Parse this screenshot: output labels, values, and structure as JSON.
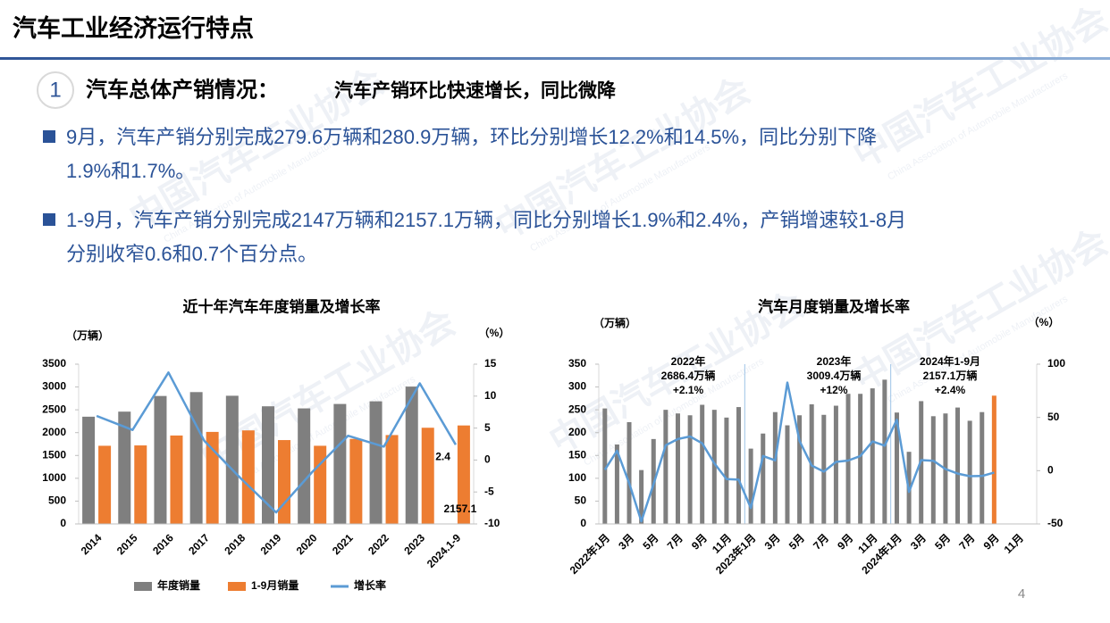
{
  "header": {
    "title": "汽车工业经济运行特点"
  },
  "section": {
    "number": "1",
    "title": "汽车总体产销情况：",
    "subtitle": "汽车产销环比快速增长，同比微降"
  },
  "bullets": [
    [
      "9月，汽车产销分别完成279.6万辆和280.9万辆，环比分别增长12.2%和14.5%，同比分别下降",
      "1.9%和1.7%。"
    ],
    [
      "1-9月，汽车产销分别完成2147万辆和2157.1万辆，同比分别增长1.9%和2.4%，产销增速较1-8月",
      "分别收窄0.6和0.7个百分点。"
    ]
  ],
  "page_number": "4",
  "watermark": {
    "cn": "中国汽车工业协会",
    "en": "China Association of Automobile Manufacturers"
  },
  "chart_data": [
    {
      "type": "bar",
      "title": "近十年汽车年度销量及增长率",
      "y_unit": "（万辆）",
      "y2_unit": "（%）",
      "categories": [
        "2014",
        "2015",
        "2016",
        "2017",
        "2018",
        "2019",
        "2020",
        "2021",
        "2022",
        "2023",
        "2024.1-9"
      ],
      "series": [
        {
          "name": "年度销量",
          "color": "#7f7f7f",
          "values": [
            2349,
            2460,
            2803,
            2888,
            2808,
            2577,
            2531,
            2628,
            2686,
            3009,
            null
          ]
        },
        {
          "name": "1-9月销量",
          "color": "#ed7d31",
          "values": [
            1712,
            1720,
            1937,
            2016,
            2049,
            1837,
            1712,
            1863,
            1947,
            2107,
            2157.1
          ],
          "value_labels": [
            null,
            null,
            null,
            null,
            null,
            null,
            null,
            null,
            null,
            null,
            "2157.1"
          ]
        },
        {
          "name": "增长率",
          "type": "line",
          "axis": "y2",
          "color": "#5b9bd5",
          "values": [
            6.9,
            4.7,
            13.7,
            3.0,
            -2.8,
            -8.2,
            -1.9,
            3.8,
            2.1,
            12,
            2.4
          ],
          "value_labels": [
            null,
            null,
            null,
            null,
            null,
            null,
            null,
            null,
            null,
            null,
            "2.4"
          ]
        }
      ],
      "ylim": [
        0,
        3500
      ],
      "yticks": [
        0,
        500,
        1000,
        1500,
        2000,
        2500,
        3000,
        3500
      ],
      "y2lim": [
        -10,
        15
      ],
      "y2ticks": [
        -10,
        -5,
        0,
        5,
        10,
        15
      ],
      "legend": "bottom"
    },
    {
      "type": "bar",
      "title": "汽车月度销量及增长率",
      "y_unit": "（万辆）",
      "y2_unit": "（%）",
      "categories": [
        "2022年1月",
        null,
        "3月",
        null,
        "5月",
        null,
        "7月",
        null,
        "9月",
        null,
        "11月",
        null,
        "2023年1月",
        null,
        "3月",
        null,
        "5月",
        null,
        "7月",
        null,
        "9月",
        null,
        "11月",
        null,
        "2024年1月",
        null,
        "3月",
        null,
        "5月",
        null,
        "7月",
        null,
        "9月",
        null,
        "11月",
        null
      ],
      "series": [
        {
          "color": "#7f7f7f",
          "values": [
            253,
            174,
            223,
            118,
            186,
            250,
            242,
            238,
            261,
            250,
            233,
            256,
            165,
            198,
            245,
            216,
            238,
            262,
            239,
            259,
            285,
            285,
            297,
            316,
            244,
            158,
            269,
            236,
            242,
            255,
            226,
            245,
            null,
            null,
            null,
            null
          ]
        },
        {
          "color": "#ed7d31",
          "values": [
            null,
            null,
            null,
            null,
            null,
            null,
            null,
            null,
            null,
            null,
            null,
            null,
            null,
            null,
            null,
            null,
            null,
            null,
            null,
            null,
            null,
            null,
            null,
            null,
            null,
            null,
            null,
            null,
            null,
            null,
            null,
            null,
            281,
            null,
            null,
            null
          ]
        },
        {
          "type": "line",
          "axis": "y2",
          "color": "#5b9bd5",
          "values": [
            0.9,
            18.7,
            -11.7,
            -47.6,
            -12.6,
            23.8,
            29.7,
            32.1,
            25.7,
            6.9,
            -7.9,
            -8.4,
            -35,
            13.8,
            9.7,
            82.7,
            27.9,
            4.8,
            -0.9,
            8.2,
            9.5,
            13.8,
            27.4,
            23.5,
            47.9,
            -19.9,
            9.9,
            9.3,
            1.5,
            -2.7,
            -5.2,
            -5,
            -1.7,
            null,
            null,
            null
          ]
        }
      ],
      "annotations": [
        {
          "lines": [
            "2022年",
            "2686.4万辆",
            "+2.1%"
          ]
        },
        {
          "lines": [
            "2023年",
            "3009.4万辆",
            "+12%"
          ]
        },
        {
          "lines": [
            "2024年1-9月",
            "2157.1万辆",
            "+2.4%"
          ]
        }
      ],
      "ylim": [
        0,
        350
      ],
      "yticks": [
        0,
        50,
        100,
        150,
        200,
        250,
        300,
        350
      ],
      "y2lim": [
        -50,
        100
      ],
      "y2ticks": [
        -50,
        0,
        50,
        100
      ]
    }
  ]
}
